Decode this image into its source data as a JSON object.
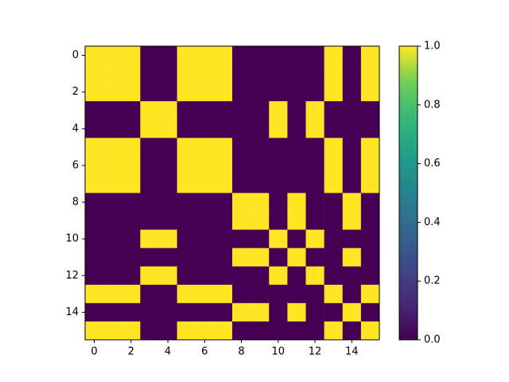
{
  "chart_data": {
    "type": "heatmap",
    "cmap": "viridis",
    "z": [
      [
        1,
        1,
        1,
        0,
        0,
        1,
        1,
        1,
        0,
        0,
        0,
        0,
        0,
        1,
        0,
        1
      ],
      [
        1,
        1,
        1,
        0,
        0,
        1,
        1,
        1,
        0,
        0,
        0,
        0,
        0,
        1,
        0,
        1
      ],
      [
        1,
        1,
        1,
        0,
        0,
        1,
        1,
        1,
        0,
        0,
        0,
        0,
        0,
        1,
        0,
        1
      ],
      [
        0,
        0,
        0,
        1,
        1,
        0,
        0,
        0,
        0,
        0,
        1,
        0,
        1,
        0,
        0,
        0
      ],
      [
        0,
        0,
        0,
        1,
        1,
        0,
        0,
        0,
        0,
        0,
        1,
        0,
        1,
        0,
        0,
        0
      ],
      [
        1,
        1,
        1,
        0,
        0,
        1,
        1,
        1,
        0,
        0,
        0,
        0,
        0,
        1,
        0,
        1
      ],
      [
        1,
        1,
        1,
        0,
        0,
        1,
        1,
        1,
        0,
        0,
        0,
        0,
        0,
        1,
        0,
        1
      ],
      [
        1,
        1,
        1,
        0,
        0,
        1,
        1,
        1,
        0,
        0,
        0,
        0,
        0,
        1,
        0,
        1
      ],
      [
        0,
        0,
        0,
        0,
        0,
        0,
        0,
        0,
        1,
        1,
        0,
        1,
        0,
        0,
        1,
        0
      ],
      [
        0,
        0,
        0,
        0,
        0,
        0,
        0,
        0,
        1,
        1,
        0,
        1,
        0,
        0,
        1,
        0
      ],
      [
        0,
        0,
        0,
        1,
        1,
        0,
        0,
        0,
        0,
        0,
        1,
        0,
        1,
        0,
        0,
        0
      ],
      [
        0,
        0,
        0,
        0,
        0,
        0,
        0,
        0,
        1,
        1,
        0,
        1,
        0,
        0,
        1,
        0
      ],
      [
        0,
        0,
        0,
        1,
        1,
        0,
        0,
        0,
        0,
        0,
        1,
        0,
        1,
        0,
        0,
        0
      ],
      [
        1,
        1,
        1,
        0,
        0,
        1,
        1,
        1,
        0,
        0,
        0,
        0,
        0,
        1,
        0,
        1
      ],
      [
        0,
        0,
        0,
        0,
        0,
        0,
        0,
        0,
        1,
        1,
        0,
        1,
        0,
        0,
        1,
        0
      ],
      [
        1,
        1,
        1,
        0,
        0,
        1,
        1,
        1,
        0,
        0,
        0,
        0,
        0,
        1,
        0,
        1
      ]
    ],
    "xlim": [
      -0.5,
      15.5
    ],
    "ylim": [
      15.5,
      -0.5
    ],
    "xticks": [
      0,
      2,
      4,
      6,
      8,
      10,
      12,
      14
    ],
    "yticks": [
      0,
      2,
      4,
      6,
      8,
      10,
      12,
      14
    ],
    "clim": [
      0,
      1
    ],
    "cticks": [
      {
        "value": 0,
        "label": "0.0"
      },
      {
        "value": 0.2,
        "label": "0.2"
      },
      {
        "value": 0.4,
        "label": "0.4"
      },
      {
        "value": 0.6,
        "label": "0.6"
      },
      {
        "value": 0.8,
        "label": "0.8"
      },
      {
        "value": 1,
        "label": "1.0"
      }
    ]
  }
}
